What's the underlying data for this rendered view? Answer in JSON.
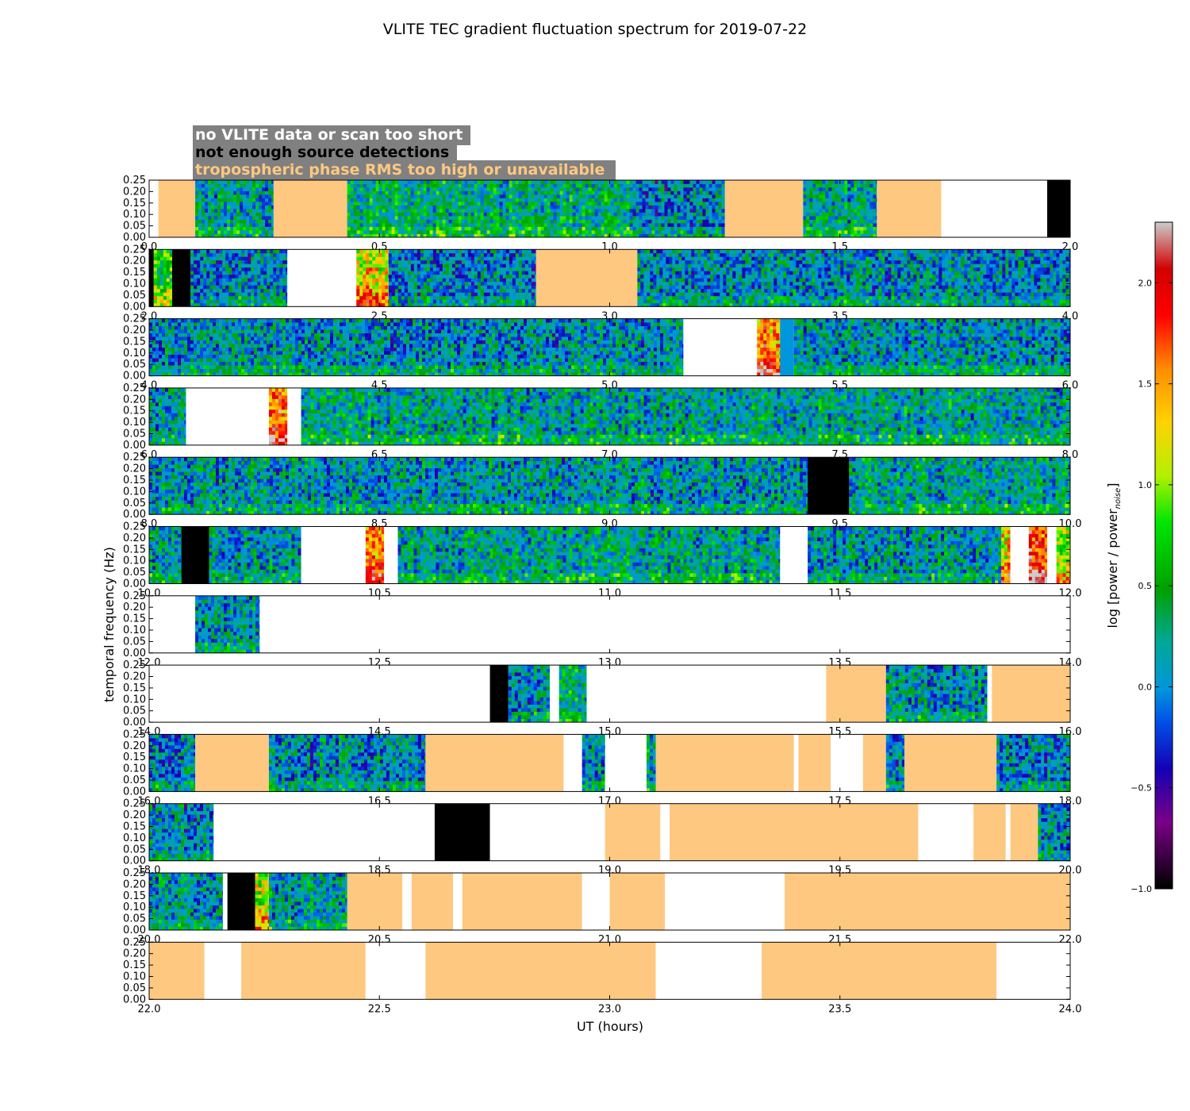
{
  "chart_data": {
    "type": "heatmap",
    "title": "VLITE TEC gradient fluctuation spectrum for 2019-07-22",
    "xlabel": "UT (hours)",
    "ylabel": "temporal frequency (Hz)",
    "colorbar_label": "log [power / power_noise]",
    "colorbar_range": [
      -1.0,
      2.3
    ],
    "colorbar_ticks": [
      "−1.0",
      "−0.5",
      "0.0",
      "0.5",
      "1.0",
      "1.5",
      "2.0"
    ],
    "colorbar_tick_values": [
      -1.0,
      -0.5,
      0.0,
      0.5,
      1.0,
      1.5,
      2.0
    ],
    "y_ticks": [
      "0.00",
      "0.05",
      "0.10",
      "0.15",
      "0.20",
      "0.25"
    ],
    "y_tick_values": [
      0.0,
      0.05,
      0.1,
      0.15,
      0.2,
      0.25
    ],
    "ylim": [
      0.0,
      0.25
    ],
    "legend": [
      {
        "label": "no VLITE data or scan too short",
        "text_color": "#ffffff",
        "bg_color": "#808080"
      },
      {
        "label": "not enough source detections",
        "text_color": "#000000",
        "bg_color": "#808080"
      },
      {
        "label": "tropospheric phase RMS too high or unavailable",
        "text_color": "#ffc880",
        "bg_color": "#808080"
      }
    ],
    "segment_colors": {
      "noise": "#0096dc",
      "none": "#ffffff",
      "fewdet": "#000000",
      "trop": "#ffc880"
    },
    "panels": [
      {
        "x_range": [
          0,
          2
        ],
        "x_ticks": [
          "0.0",
          "0.5",
          "1.0",
          "1.5",
          "2.0"
        ],
        "segments": [
          [
            0,
            0.02,
            "none"
          ],
          [
            0.02,
            0.1,
            "trop"
          ],
          [
            0.1,
            0.27,
            "data",
            0.15
          ],
          [
            0.27,
            0.43,
            "trop"
          ],
          [
            0.43,
            1.05,
            "data",
            0.3
          ],
          [
            1.05,
            1.25,
            "data",
            0.0
          ],
          [
            1.25,
            1.42,
            "trop"
          ],
          [
            1.42,
            1.58,
            "data",
            0.2
          ],
          [
            1.58,
            1.72,
            "trop"
          ],
          [
            1.72,
            1.95,
            "none"
          ],
          [
            1.95,
            2.0,
            "fewdet"
          ]
        ]
      },
      {
        "x_range": [
          2,
          4
        ],
        "x_ticks": [
          "2.0",
          "2.5",
          "3.0",
          "3.5",
          "4.0"
        ],
        "segments": [
          [
            2.0,
            2.01,
            "fewdet"
          ],
          [
            2.01,
            2.05,
            "data",
            0.8
          ],
          [
            2.05,
            2.09,
            "fewdet"
          ],
          [
            2.09,
            2.3,
            "data",
            0.0
          ],
          [
            2.3,
            2.45,
            "none"
          ],
          [
            2.45,
            2.52,
            "data",
            1.3
          ],
          [
            2.52,
            2.84,
            "data",
            0.0
          ],
          [
            2.84,
            3.06,
            "trop"
          ],
          [
            3.06,
            4.0,
            "data",
            0.05
          ]
        ]
      },
      {
        "x_range": [
          4,
          6
        ],
        "x_ticks": [
          "4.0",
          "4.5",
          "5.0",
          "5.5",
          "6.0"
        ],
        "segments": [
          [
            4.0,
            5.16,
            "data",
            0.05
          ],
          [
            5.16,
            5.32,
            "none"
          ],
          [
            5.32,
            5.37,
            "data",
            1.7
          ],
          [
            5.37,
            5.4,
            "noise"
          ],
          [
            5.4,
            6.0,
            "data",
            0.1
          ]
        ]
      },
      {
        "x_range": [
          6,
          8
        ],
        "x_ticks": [
          "6.0",
          "6.5",
          "7.0",
          "7.5",
          "8.0"
        ],
        "segments": [
          [
            6.0,
            6.08,
            "data",
            0.1
          ],
          [
            6.08,
            6.26,
            "none"
          ],
          [
            6.26,
            6.3,
            "data",
            1.7
          ],
          [
            6.3,
            6.33,
            "none"
          ],
          [
            6.33,
            8.0,
            "data",
            0.2
          ]
        ]
      },
      {
        "x_range": [
          8,
          10
        ],
        "x_ticks": [
          "8.0",
          "8.5",
          "9.0",
          "9.5",
          "10.0"
        ],
        "segments": [
          [
            8.0,
            9.43,
            "data",
            0.1
          ],
          [
            9.43,
            9.52,
            "fewdet"
          ],
          [
            9.52,
            10.0,
            "data",
            0.2
          ]
        ]
      },
      {
        "x_range": [
          10,
          12
        ],
        "x_ticks": [
          "10.0",
          "10.5",
          "11.0",
          "11.5",
          "12.0"
        ],
        "segments": [
          [
            10.0,
            10.07,
            "data",
            0.15
          ],
          [
            10.07,
            10.13,
            "fewdet"
          ],
          [
            10.13,
            10.33,
            "data",
            0.1
          ],
          [
            10.33,
            10.47,
            "none"
          ],
          [
            10.47,
            10.51,
            "data",
            1.6
          ],
          [
            10.51,
            10.54,
            "none"
          ],
          [
            10.54,
            11.37,
            "data",
            0.2
          ],
          [
            11.37,
            11.43,
            "none"
          ],
          [
            11.43,
            11.85,
            "data",
            0.1
          ],
          [
            11.85,
            11.87,
            "data",
            1.4
          ],
          [
            11.87,
            11.91,
            "none"
          ],
          [
            11.91,
            11.95,
            "data",
            1.8
          ],
          [
            11.95,
            11.97,
            "none"
          ],
          [
            11.97,
            12.0,
            "data",
            1.1
          ]
        ]
      },
      {
        "x_range": [
          12,
          14
        ],
        "x_ticks": [
          "12.0",
          "12.5",
          "13.0",
          "13.5",
          "14.0"
        ],
        "segments": [
          [
            12.0,
            12.1,
            "none"
          ],
          [
            12.1,
            12.24,
            "data",
            0.1
          ],
          [
            12.24,
            14.0,
            "none"
          ]
        ]
      },
      {
        "x_range": [
          14,
          16
        ],
        "x_ticks": [
          "14.0",
          "14.5",
          "15.0",
          "15.5",
          "16.0"
        ],
        "segments": [
          [
            14.0,
            14.74,
            "none"
          ],
          [
            14.74,
            14.78,
            "fewdet"
          ],
          [
            14.78,
            14.87,
            "data",
            0.1
          ],
          [
            14.87,
            14.89,
            "none"
          ],
          [
            14.89,
            14.95,
            "data",
            0.3
          ],
          [
            14.95,
            15.47,
            "none"
          ],
          [
            15.47,
            15.6,
            "trop"
          ],
          [
            15.6,
            15.82,
            "data",
            0.1
          ],
          [
            15.82,
            15.83,
            "none"
          ],
          [
            15.83,
            16.0,
            "trop"
          ]
        ]
      },
      {
        "x_range": [
          16,
          18
        ],
        "x_ticks": [
          "16.0",
          "16.5",
          "17.0",
          "17.5",
          "18.0"
        ],
        "segments": [
          [
            16.0,
            16.1,
            "data",
            0.0
          ],
          [
            16.1,
            16.26,
            "trop"
          ],
          [
            16.26,
            16.6,
            "data",
            0.05
          ],
          [
            16.6,
            16.9,
            "trop"
          ],
          [
            16.9,
            16.94,
            "none"
          ],
          [
            16.94,
            16.99,
            "data",
            0.1
          ],
          [
            16.99,
            17.08,
            "none"
          ],
          [
            17.08,
            17.1,
            "data",
            0.2
          ],
          [
            17.1,
            17.4,
            "trop"
          ],
          [
            17.4,
            17.41,
            "none"
          ],
          [
            17.41,
            17.48,
            "trop"
          ],
          [
            17.48,
            17.55,
            "none"
          ],
          [
            17.55,
            17.6,
            "trop"
          ],
          [
            17.6,
            17.64,
            "data",
            0.0
          ],
          [
            17.64,
            17.84,
            "trop"
          ],
          [
            17.84,
            18.0,
            "data",
            0.0
          ]
        ]
      },
      {
        "x_range": [
          18,
          20
        ],
        "x_ticks": [
          "18.0",
          "18.5",
          "19.0",
          "19.5",
          "20.0"
        ],
        "segments": [
          [
            18.0,
            18.14,
            "data",
            0.0
          ],
          [
            18.14,
            18.62,
            "none"
          ],
          [
            18.62,
            18.74,
            "fewdet"
          ],
          [
            18.74,
            18.99,
            "none"
          ],
          [
            18.99,
            19.11,
            "trop"
          ],
          [
            19.11,
            19.13,
            "none"
          ],
          [
            19.13,
            19.67,
            "trop"
          ],
          [
            19.67,
            19.79,
            "none"
          ],
          [
            19.79,
            19.86,
            "trop"
          ],
          [
            19.86,
            19.87,
            "none"
          ],
          [
            19.87,
            19.93,
            "trop"
          ],
          [
            19.93,
            20.0,
            "data",
            0.0
          ]
        ]
      },
      {
        "x_range": [
          20,
          22
        ],
        "x_ticks": [
          "20.0",
          "20.5",
          "21.0",
          "21.5",
          "22.0"
        ],
        "segments": [
          [
            20.0,
            20.16,
            "data",
            0.1
          ],
          [
            20.16,
            20.17,
            "none"
          ],
          [
            20.17,
            20.23,
            "fewdet"
          ],
          [
            20.23,
            20.26,
            "data",
            1.1
          ],
          [
            20.26,
            20.43,
            "data",
            0.2
          ],
          [
            20.43,
            20.55,
            "trop"
          ],
          [
            20.55,
            20.57,
            "none"
          ],
          [
            20.57,
            20.66,
            "trop"
          ],
          [
            20.66,
            20.68,
            "none"
          ],
          [
            20.68,
            20.94,
            "trop"
          ],
          [
            20.94,
            21.0,
            "none"
          ],
          [
            21.0,
            21.12,
            "trop"
          ],
          [
            21.12,
            21.38,
            "none"
          ],
          [
            21.38,
            22.0,
            "trop"
          ]
        ]
      },
      {
        "x_range": [
          22,
          24
        ],
        "x_ticks": [
          "22.0",
          "22.5",
          "23.0",
          "23.5",
          "24.0"
        ],
        "segments": [
          [
            22.0,
            22.12,
            "trop"
          ],
          [
            22.12,
            22.2,
            "none"
          ],
          [
            22.2,
            22.47,
            "trop"
          ],
          [
            22.47,
            22.6,
            "none"
          ],
          [
            22.6,
            23.1,
            "trop"
          ],
          [
            23.1,
            23.33,
            "none"
          ],
          [
            23.33,
            23.84,
            "trop"
          ],
          [
            23.84,
            24.0,
            "none"
          ]
        ]
      }
    ]
  }
}
